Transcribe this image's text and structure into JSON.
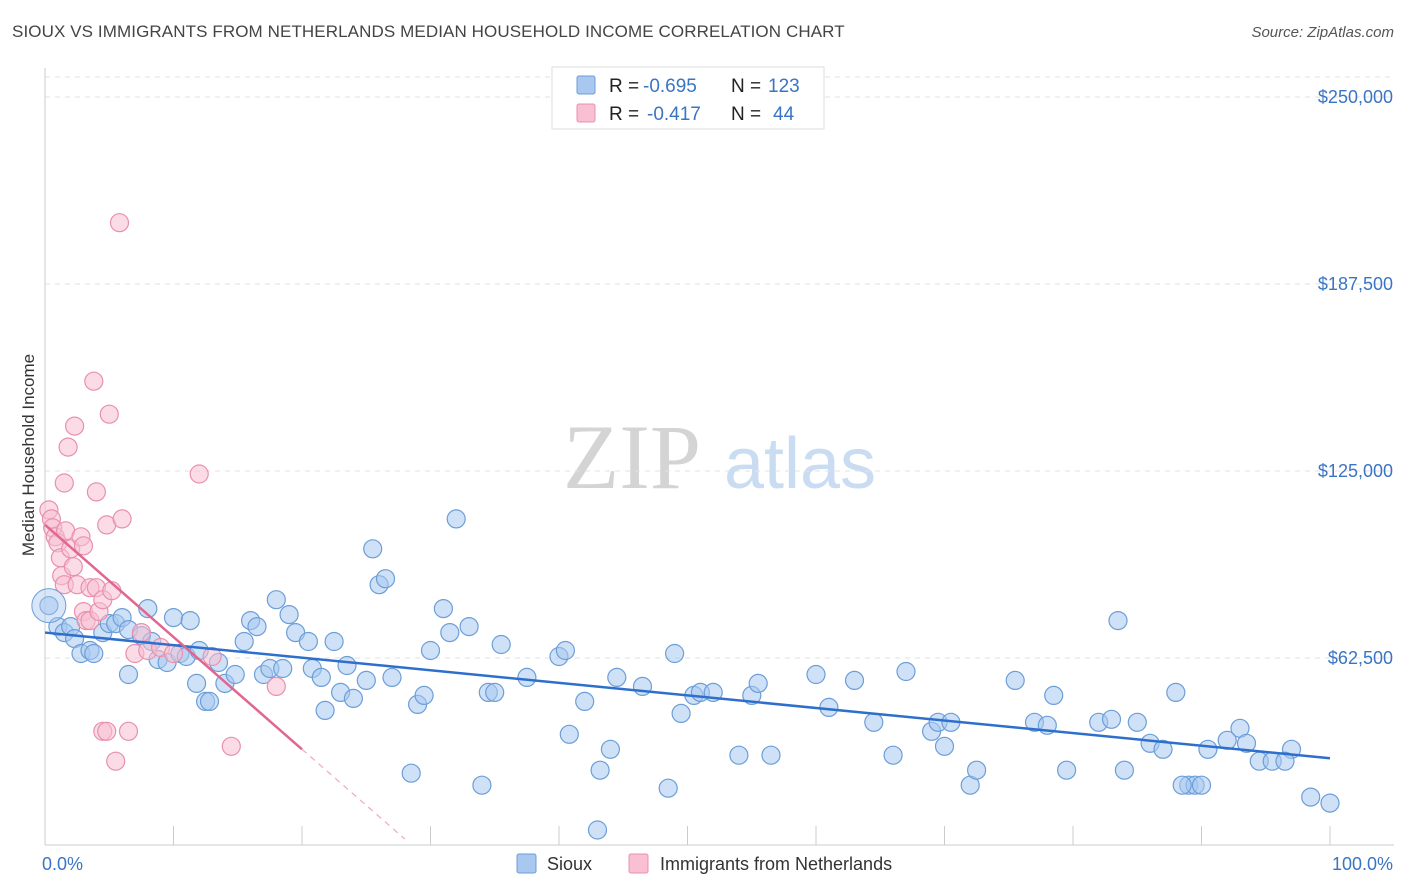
{
  "header": {
    "title": "SIOUX VS IMMIGRANTS FROM NETHERLANDS MEDIAN HOUSEHOLD INCOME CORRELATION CHART",
    "source": "Source: ZipAtlas.com"
  },
  "watermark": {
    "zip": "ZIP",
    "atlas": "atlas"
  },
  "legend": {
    "r_label": "R =",
    "n_label": "N =",
    "rows": [
      {
        "r": "-0.695",
        "n": "123",
        "color": "#a8c8f0",
        "stroke": "#6c9ed8"
      },
      {
        "r": "-0.417",
        "n": "44",
        "color": "#f8c0d2",
        "stroke": "#e890ae"
      }
    ]
  },
  "chart_data": {
    "type": "scatter",
    "title": "SIOUX VS IMMIGRANTS FROM NETHERLANDS MEDIAN HOUSEHOLD INCOME CORRELATION CHART",
    "xlabel": "",
    "ylabel": "Median Household Income",
    "xlim": [
      0,
      100
    ],
    "ylim": [
      0,
      250000
    ],
    "x_tick_labels": [
      "0.0%",
      "100.0%"
    ],
    "y_ticks": [
      62500,
      125000,
      187500,
      250000
    ],
    "y_tick_labels": [
      "$62,500",
      "$125,000",
      "$187,500",
      "$250,000"
    ],
    "grid": true,
    "legend_position": "top-center",
    "series": [
      {
        "name": "Sioux",
        "color": "#a8c8f0",
        "stroke": "#6c9ed8",
        "line_color": "#2e6fcc",
        "trend": {
          "x": [
            0,
            100
          ],
          "y": [
            71000,
            29000
          ]
        },
        "points": [
          [
            0.3,
            80000
          ],
          [
            1,
            73000
          ],
          [
            1.5,
            71000
          ],
          [
            2,
            73000
          ],
          [
            2.3,
            69000
          ],
          [
            2.8,
            64000
          ],
          [
            3.5,
            65000
          ],
          [
            3.8,
            64000
          ],
          [
            4.5,
            71000
          ],
          [
            5,
            74000
          ],
          [
            5.5,
            74000
          ],
          [
            6,
            76000
          ],
          [
            6.5,
            72000
          ],
          [
            7.5,
            70000
          ],
          [
            6.5,
            57000
          ],
          [
            8,
            79000
          ],
          [
            8.3,
            68000
          ],
          [
            8.8,
            62000
          ],
          [
            9.5,
            61000
          ],
          [
            10,
            76000
          ],
          [
            10.5,
            64000
          ],
          [
            11,
            63000
          ],
          [
            11.3,
            75000
          ],
          [
            11.8,
            54000
          ],
          [
            12,
            65000
          ],
          [
            12.5,
            48000
          ],
          [
            12.8,
            48000
          ],
          [
            13.5,
            61000
          ],
          [
            14,
            54000
          ],
          [
            14.8,
            57000
          ],
          [
            15.5,
            68000
          ],
          [
            16,
            75000
          ],
          [
            16.5,
            73000
          ],
          [
            17,
            57000
          ],
          [
            17.5,
            59000
          ],
          [
            18,
            82000
          ],
          [
            18.5,
            59000
          ],
          [
            19,
            77000
          ],
          [
            19.5,
            71000
          ],
          [
            20.5,
            68000
          ],
          [
            20.8,
            59000
          ],
          [
            21.5,
            56000
          ],
          [
            21.8,
            45000
          ],
          [
            22.5,
            68000
          ],
          [
            23,
            51000
          ],
          [
            23.5,
            60000
          ],
          [
            24,
            49000
          ],
          [
            25,
            55000
          ],
          [
            25.5,
            99000
          ],
          [
            26,
            87000
          ],
          [
            26.5,
            89000
          ],
          [
            27,
            56000
          ],
          [
            28.5,
            24000
          ],
          [
            29,
            47000
          ],
          [
            29.5,
            50000
          ],
          [
            30,
            65000
          ],
          [
            31,
            79000
          ],
          [
            31.5,
            71000
          ],
          [
            32,
            109000
          ],
          [
            33,
            73000
          ],
          [
            34,
            20000
          ],
          [
            34.5,
            51000
          ],
          [
            35,
            51000
          ],
          [
            35.5,
            67000
          ],
          [
            37.5,
            56000
          ],
          [
            40,
            63000
          ],
          [
            40.5,
            65000
          ],
          [
            42,
            48000
          ],
          [
            43,
            5000
          ],
          [
            43.2,
            25000
          ],
          [
            44,
            32000
          ],
          [
            44.5,
            56000
          ],
          [
            46.5,
            53000
          ],
          [
            48.5,
            19000
          ],
          [
            49,
            64000
          ],
          [
            49.5,
            44000
          ],
          [
            50.5,
            50000
          ],
          [
            51,
            51000
          ],
          [
            52,
            51000
          ],
          [
            54,
            30000
          ],
          [
            55,
            50000
          ],
          [
            55.5,
            54000
          ],
          [
            56.5,
            30000
          ],
          [
            60,
            57000
          ],
          [
            61,
            46000
          ],
          [
            63,
            55000
          ],
          [
            64.5,
            41000
          ],
          [
            66,
            30000
          ],
          [
            67,
            58000
          ],
          [
            69,
            38000
          ],
          [
            69.5,
            41000
          ],
          [
            70,
            33000
          ],
          [
            70.5,
            41000
          ],
          [
            72,
            20000
          ],
          [
            72.5,
            25000
          ],
          [
            75.5,
            55000
          ],
          [
            77,
            41000
          ],
          [
            78,
            40000
          ],
          [
            78.5,
            50000
          ],
          [
            79.5,
            25000
          ],
          [
            82,
            41000
          ],
          [
            83,
            42000
          ],
          [
            83.5,
            75000
          ],
          [
            84,
            25000
          ],
          [
            85,
            41000
          ],
          [
            86,
            34000
          ],
          [
            87,
            32000
          ],
          [
            88,
            51000
          ],
          [
            89,
            20000
          ],
          [
            89.5,
            20000
          ],
          [
            90,
            20000
          ],
          [
            90.5,
            32000
          ],
          [
            92,
            35000
          ],
          [
            93,
            39000
          ],
          [
            93.5,
            34000
          ],
          [
            94.5,
            28000
          ],
          [
            95.5,
            28000
          ],
          [
            97,
            32000
          ],
          [
            98.5,
            16000
          ],
          [
            100,
            14000
          ],
          [
            96.5,
            28000
          ],
          [
            88.5,
            20000
          ],
          [
            40.8,
            37000
          ]
        ]
      },
      {
        "name": "Immigrants from Netherlands",
        "color": "#f8c0d2",
        "stroke": "#e890ae",
        "line_color": "#e06890",
        "trend": {
          "x": [
            0,
            20
          ],
          "y": [
            107000,
            32000
          ]
        },
        "trend_dashed": {
          "x": [
            20,
            28
          ],
          "y": [
            32000,
            2000
          ]
        },
        "points": [
          [
            0.3,
            112000
          ],
          [
            0.5,
            109000
          ],
          [
            0.6,
            106000
          ],
          [
            0.8,
            103000
          ],
          [
            1,
            101000
          ],
          [
            1.2,
            96000
          ],
          [
            1.3,
            90000
          ],
          [
            1.5,
            87000
          ],
          [
            1.5,
            121000
          ],
          [
            1.6,
            105000
          ],
          [
            1.8,
            133000
          ],
          [
            2,
            99000
          ],
          [
            2.2,
            93000
          ],
          [
            2.3,
            140000
          ],
          [
            2.5,
            87000
          ],
          [
            2.8,
            103000
          ],
          [
            3,
            100000
          ],
          [
            3,
            78000
          ],
          [
            3.2,
            75000
          ],
          [
            3.5,
            75000
          ],
          [
            3.5,
            86000
          ],
          [
            3.8,
            155000
          ],
          [
            4,
            118000
          ],
          [
            4,
            86000
          ],
          [
            4.2,
            78000
          ],
          [
            4.5,
            82000
          ],
          [
            4.8,
            107000
          ],
          [
            5,
            144000
          ],
          [
            5.2,
            85000
          ],
          [
            5.8,
            208000
          ],
          [
            6,
            109000
          ],
          [
            4.5,
            38000
          ],
          [
            4.8,
            38000
          ],
          [
            5.5,
            28000
          ],
          [
            6.5,
            38000
          ],
          [
            7,
            64000
          ],
          [
            7.5,
            71000
          ],
          [
            8,
            65000
          ],
          [
            9,
            66000
          ],
          [
            10,
            64000
          ],
          [
            12,
            124000
          ],
          [
            13,
            63000
          ],
          [
            14.5,
            33000
          ],
          [
            18,
            53000
          ]
        ]
      }
    ]
  }
}
